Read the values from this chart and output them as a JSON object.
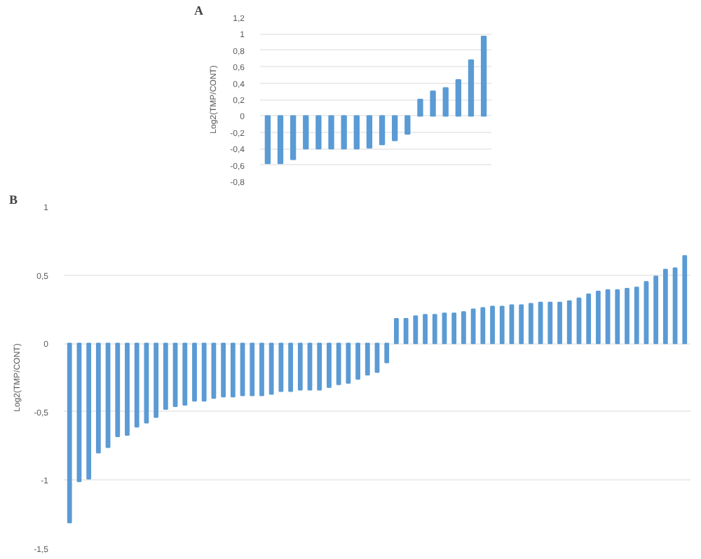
{
  "chart_data": [
    {
      "type": "bar",
      "title": "A",
      "ylabel": "Log2(TMP/CONT)",
      "categories": [
        null,
        null,
        null,
        null,
        null,
        null,
        null,
        null,
        null,
        null,
        null,
        null,
        null,
        null,
        null,
        null,
        null,
        null
      ],
      "series": [
        {
          "color": "#5b9bd5",
          "values": [
            -0.58,
            -0.58,
            -0.53,
            -0.4,
            -0.4,
            -0.4,
            -0.4,
            -0.4,
            -0.39,
            -0.35,
            -0.3,
            -0.22,
            0.2,
            0.3,
            0.34,
            0.44,
            0.68,
            0.97
          ]
        }
      ],
      "ylim": [
        -0.8,
        1.2
      ],
      "yticks": [
        {
          "value": -0.8,
          "label": "-0,8"
        },
        {
          "value": -0.6,
          "label": "-0,6"
        },
        {
          "value": -0.4,
          "label": "-0,4"
        },
        {
          "value": -0.2,
          "label": "-0,2"
        },
        0,
        {
          "value": 0.2,
          "label": "0,2"
        },
        {
          "value": 0.4,
          "label": "0,4"
        },
        {
          "value": 0.6,
          "label": "0,6"
        },
        {
          "value": 0.8,
          "label": "0,8"
        },
        1,
        {
          "value": 1.2,
          "label": "1,2"
        }
      ],
      "grid": "y"
    },
    {
      "type": "bar",
      "title": "B",
      "ylabel": "Log2(TMP/CONT)",
      "categories": [
        null,
        null,
        null,
        null,
        null,
        null,
        null,
        null,
        null,
        null,
        null,
        null,
        null,
        null,
        null,
        null,
        null,
        null,
        null,
        null,
        null,
        null,
        null,
        null,
        null,
        null,
        null,
        null,
        null,
        null,
        null,
        null,
        null,
        null,
        null,
        null,
        null,
        null,
        null,
        null,
        null,
        null,
        null,
        null,
        null,
        null,
        null,
        null,
        null,
        null,
        null,
        null,
        null,
        null,
        null,
        null,
        null,
        null,
        null,
        null,
        null,
        null,
        null,
        null,
        null
      ],
      "series": [
        {
          "color": "#5b9bd5",
          "values": [
            -1.31,
            -1.01,
            -0.99,
            -0.8,
            -0.76,
            -0.68,
            -0.67,
            -0.61,
            -0.58,
            -0.54,
            -0.48,
            -0.46,
            -0.45,
            -0.42,
            -0.42,
            -0.4,
            -0.39,
            -0.39,
            -0.38,
            -0.38,
            -0.38,
            -0.37,
            -0.35,
            -0.35,
            -0.34,
            -0.34,
            -0.34,
            -0.32,
            -0.3,
            -0.29,
            -0.26,
            -0.23,
            -0.21,
            -0.14,
            0.18,
            0.18,
            0.2,
            0.21,
            0.21,
            0.22,
            0.22,
            0.23,
            0.25,
            0.26,
            0.27,
            0.27,
            0.28,
            0.28,
            0.29,
            0.3,
            0.3,
            0.3,
            0.31,
            0.33,
            0.36,
            0.38,
            0.39,
            0.39,
            0.4,
            0.41,
            0.45,
            0.49,
            0.54,
            0.55,
            0.64
          ]
        }
      ],
      "ylim": [
        -1.5,
        1
      ],
      "yticks": [
        {
          "value": -1.5,
          "label": "-1,5"
        },
        -1,
        {
          "value": -0.5,
          "label": "-0,5"
        },
        0,
        {
          "value": 0.5,
          "label": "0,5"
        },
        1
      ],
      "grid": "y"
    }
  ]
}
